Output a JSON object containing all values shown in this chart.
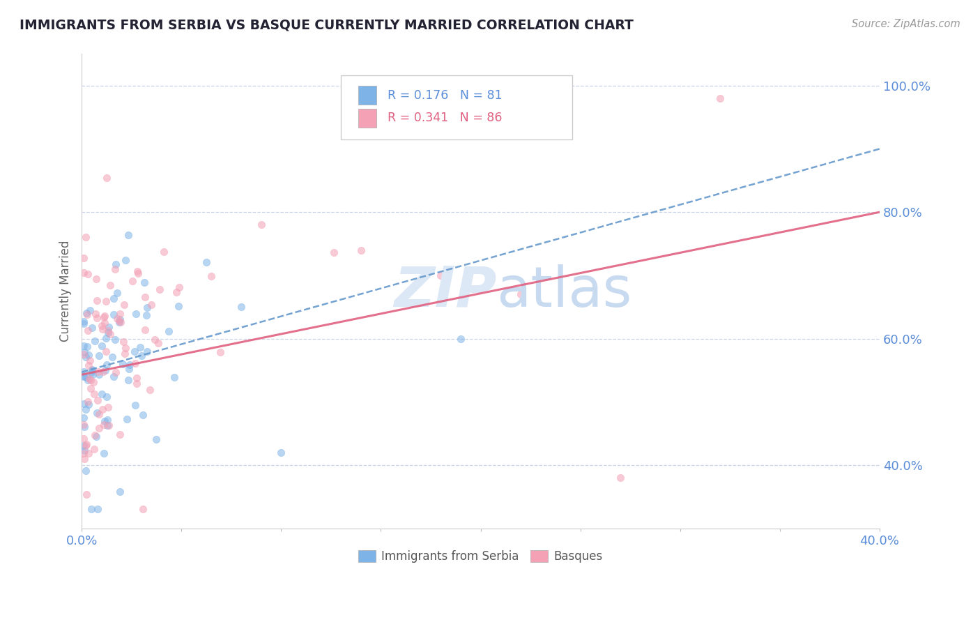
{
  "title": "IMMIGRANTS FROM SERBIA VS BASQUE CURRENTLY MARRIED CORRELATION CHART",
  "source_text": "Source: ZipAtlas.com",
  "ylabel": "Currently Married",
  "serbia_R": 0.176,
  "serbia_N": 81,
  "basque_R": 0.341,
  "basque_N": 86,
  "serbia_color": "#7eb3e8",
  "basque_color": "#f4a0b5",
  "serbia_line_color": "#6699cc",
  "basque_line_color": "#e06080",
  "background_color": "#ffffff",
  "grid_color": "#c8d4e8",
  "title_color": "#222233",
  "axis_label_color": "#5b8dd9",
  "legend_R_serbia_color": "#5b8dd9",
  "legend_R_basque_color": "#e06080",
  "watermark_color": "#dce8f5",
  "xlim": [
    0.0,
    0.4
  ],
  "ylim": [
    0.3,
    1.05
  ],
  "yticks": [
    0.4,
    0.6,
    0.8,
    1.0
  ],
  "ytick_labels": [
    "40.0%",
    "60.0%",
    "80.0%",
    "100.0%"
  ],
  "xticks": [
    0.0,
    0.05,
    0.1,
    0.15,
    0.2,
    0.25,
    0.3,
    0.35,
    0.4
  ],
  "xtick_labels": [
    "0.0%",
    "",
    "",
    "",
    "",
    "",
    "",
    "",
    "40.0%"
  ]
}
